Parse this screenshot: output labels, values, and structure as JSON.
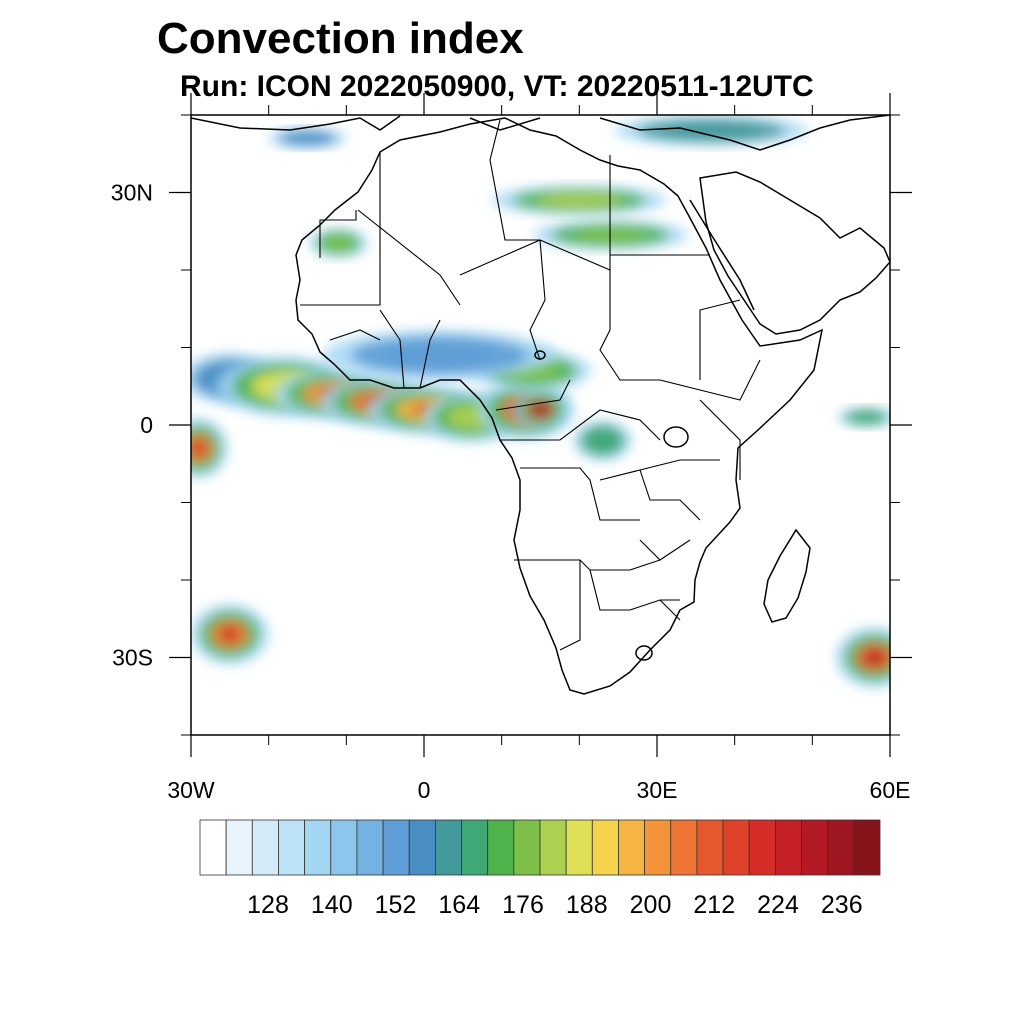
{
  "title": "Convection index",
  "subtitle": "Run: ICON 2022050900,  VT: 20220511-12UTC",
  "map": {
    "lon_range": [
      -30,
      60
    ],
    "lat_range": [
      -40,
      40
    ],
    "lat_ticks": [
      {
        "value": 30,
        "label": "30N"
      },
      {
        "value": 0,
        "label": "0"
      },
      {
        "value": -30,
        "label": "30S"
      }
    ],
    "lon_ticks": [
      {
        "value": -30,
        "label": "30W"
      },
      {
        "value": 0,
        "label": "0"
      },
      {
        "value": 30,
        "label": "30E"
      },
      {
        "value": 60,
        "label": "60E"
      }
    ],
    "land_outline_color": "#000000"
  },
  "colorbar": {
    "colors": [
      "#ffffff",
      "#e8f4fc",
      "#d2ebf9",
      "#bce2f7",
      "#a3d6f3",
      "#8cc6ec",
      "#74b2e2",
      "#5e9dd6",
      "#4a8fc4",
      "#44999a",
      "#3fa877",
      "#4fb34c",
      "#7cc049",
      "#acd04f",
      "#dee157",
      "#f5d34d",
      "#f6b443",
      "#f3943a",
      "#ee7533",
      "#e6592e",
      "#e0432b",
      "#d62d29",
      "#c62027",
      "#b31a23",
      "#9e1720",
      "#87131a"
    ],
    "labels": [
      "128",
      "140",
      "152",
      "164",
      "176",
      "188",
      "200",
      "212",
      "224",
      "236"
    ],
    "label_box_index": [
      1,
      4,
      7,
      10,
      13,
      16,
      19,
      22,
      25,
      28
    ]
  },
  "precip_cells": [
    {
      "lon": -25,
      "lat": 6,
      "rx": 5,
      "ry": 2.5,
      "level": 8
    },
    {
      "lon": -18,
      "lat": 5,
      "rx": 7,
      "ry": 3,
      "level": 14
    },
    {
      "lon": -12,
      "lat": 4,
      "rx": 6,
      "ry": 2.5,
      "level": 17
    },
    {
      "lon": -6,
      "lat": 3,
      "rx": 6,
      "ry": 2.5,
      "level": 18
    },
    {
      "lon": 0,
      "lat": 2,
      "rx": 6,
      "ry": 2.5,
      "level": 16
    },
    {
      "lon": 6,
      "lat": 1,
      "rx": 5,
      "ry": 2.5,
      "level": 13
    },
    {
      "lon": 13,
      "lat": 2,
      "rx": 5,
      "ry": 3,
      "level": 19
    },
    {
      "lon": 15,
      "lat": 2,
      "rx": 3,
      "ry": 2,
      "level": 22
    },
    {
      "lon": 14,
      "lat": 7,
      "rx": 6,
      "ry": 2,
      "level": 12
    },
    {
      "lon": 2,
      "lat": 9,
      "rx": 12,
      "ry": 2.5,
      "level": 7
    },
    {
      "lon": -29,
      "lat": -3,
      "rx": 3,
      "ry": 3,
      "level": 18
    },
    {
      "lon": 23,
      "lat": -2,
      "rx": 3,
      "ry": 2,
      "level": 10
    },
    {
      "lon": 57,
      "lat": 1,
      "rx": 3,
      "ry": 1,
      "level": 10
    },
    {
      "lon": -25,
      "lat": -27,
      "rx": 4,
      "ry": 3,
      "level": 18
    },
    {
      "lon": 58,
      "lat": -30,
      "rx": 4,
      "ry": 3,
      "level": 19
    },
    {
      "lon": 20,
      "lat": 29,
      "rx": 9,
      "ry": 1.5,
      "level": 13
    },
    {
      "lon": 24,
      "lat": 24.5,
      "rx": 8,
      "ry": 1.5,
      "level": 12
    },
    {
      "lon": -11,
      "lat": 23.5,
      "rx": 3,
      "ry": 1.5,
      "level": 12
    },
    {
      "lon": 37,
      "lat": 38,
      "rx": 10,
      "ry": 1.5,
      "level": 9
    },
    {
      "lon": -15,
      "lat": 37,
      "rx": 4,
      "ry": 1,
      "level": 8
    }
  ]
}
